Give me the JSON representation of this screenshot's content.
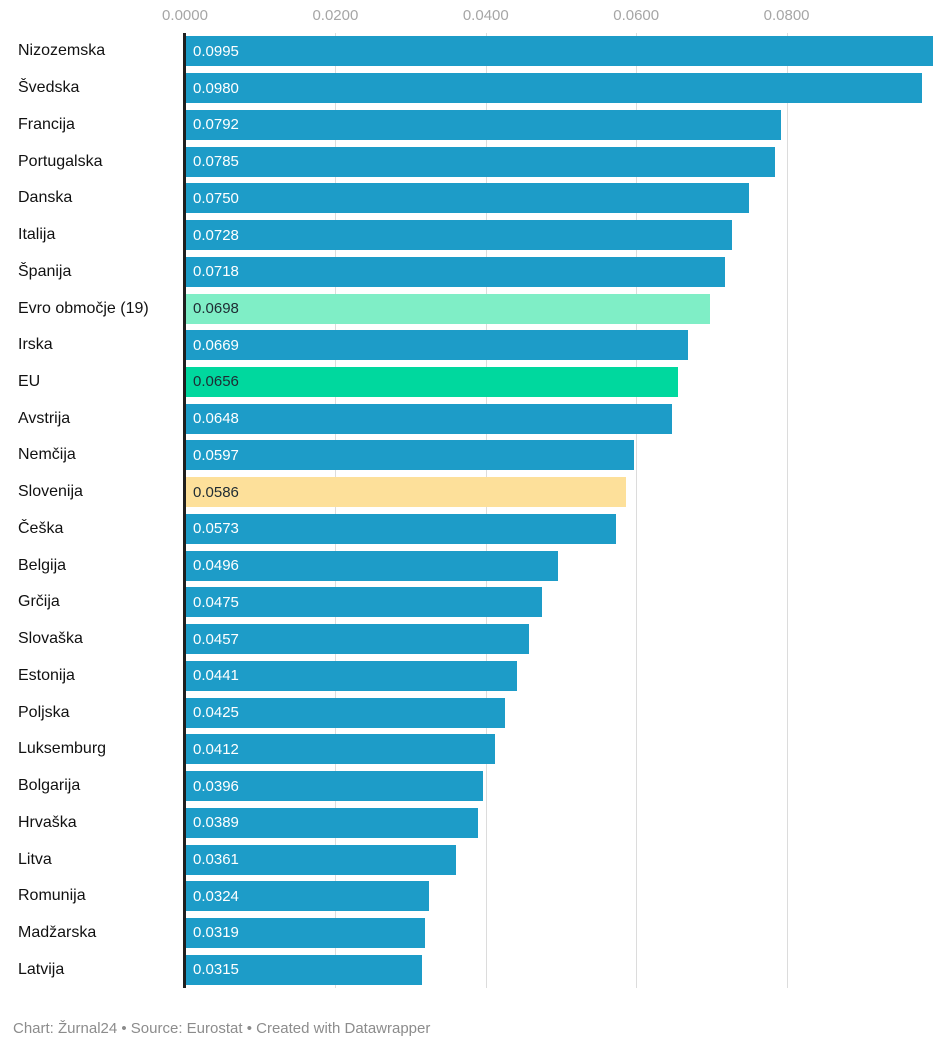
{
  "chart_data": {
    "type": "bar",
    "orientation": "horizontal",
    "title": "",
    "xlabel": "",
    "ylabel": "",
    "xlim": [
      0,
      0.1004
    ],
    "grid": true,
    "legend": false,
    "x_ticks": [
      {
        "value": 0.0,
        "label": "0.0000"
      },
      {
        "value": 0.02,
        "label": "0.0200"
      },
      {
        "value": 0.04,
        "label": "0.0400"
      },
      {
        "value": 0.06,
        "label": "0.0600"
      },
      {
        "value": 0.08,
        "label": "0.0800"
      }
    ],
    "rows": [
      {
        "label": "Nizozemska",
        "value": 0.0995,
        "display": "0.0995",
        "color": "blue"
      },
      {
        "label": "Švedska",
        "value": 0.098,
        "display": "0.0980",
        "color": "blue"
      },
      {
        "label": "Francija",
        "value": 0.0792,
        "display": "0.0792",
        "color": "blue"
      },
      {
        "label": "Portugalska",
        "value": 0.0785,
        "display": "0.0785",
        "color": "blue"
      },
      {
        "label": "Danska",
        "value": 0.075,
        "display": "0.0750",
        "color": "blue"
      },
      {
        "label": "Italija",
        "value": 0.0728,
        "display": "0.0728",
        "color": "blue"
      },
      {
        "label": "Španija",
        "value": 0.0718,
        "display": "0.0718",
        "color": "blue"
      },
      {
        "label": "Evro območje (19)",
        "value": 0.0698,
        "display": "0.0698",
        "color": "mint"
      },
      {
        "label": "Irska",
        "value": 0.0669,
        "display": "0.0669",
        "color": "blue"
      },
      {
        "label": "EU",
        "value": 0.0656,
        "display": "0.0656",
        "color": "green"
      },
      {
        "label": "Avstrija",
        "value": 0.0648,
        "display": "0.0648",
        "color": "blue"
      },
      {
        "label": "Nemčija",
        "value": 0.0597,
        "display": "0.0597",
        "color": "blue"
      },
      {
        "label": "Slovenija",
        "value": 0.0586,
        "display": "0.0586",
        "color": "yellow"
      },
      {
        "label": "Češka",
        "value": 0.0573,
        "display": "0.0573",
        "color": "blue"
      },
      {
        "label": "Belgija",
        "value": 0.0496,
        "display": "0.0496",
        "color": "blue"
      },
      {
        "label": "Grčija",
        "value": 0.0475,
        "display": "0.0475",
        "color": "blue"
      },
      {
        "label": "Slovaška",
        "value": 0.0457,
        "display": "0.0457",
        "color": "blue"
      },
      {
        "label": "Estonija",
        "value": 0.0441,
        "display": "0.0441",
        "color": "blue"
      },
      {
        "label": "Poljska",
        "value": 0.0425,
        "display": "0.0425",
        "color": "blue"
      },
      {
        "label": "Luksemburg",
        "value": 0.0412,
        "display": "0.0412",
        "color": "blue"
      },
      {
        "label": "Bolgarija",
        "value": 0.0396,
        "display": "0.0396",
        "color": "blue"
      },
      {
        "label": "Hrvaška",
        "value": 0.0389,
        "display": "0.0389",
        "color": "blue"
      },
      {
        "label": "Litva",
        "value": 0.0361,
        "display": "0.0361",
        "color": "blue"
      },
      {
        "label": "Romunija",
        "value": 0.0324,
        "display": "0.0324",
        "color": "blue"
      },
      {
        "label": "Madžarska",
        "value": 0.0319,
        "display": "0.0319",
        "color": "blue"
      },
      {
        "label": "Latvija",
        "value": 0.0315,
        "display": "0.0315",
        "color": "blue"
      }
    ]
  },
  "colors": {
    "blue": "#1d9cc8",
    "mint": "#7feec6",
    "green": "#00d89e",
    "yellow": "#fde09a",
    "bar_text_light": "#ffffff",
    "bar_text_dark": "#1e2b33",
    "axis_line": "#1f1f1f",
    "gridline": "#dcdcdc",
    "tick_text": "#a6a6a6",
    "label_text": "#111111",
    "footer_text": "#8c8c8c"
  },
  "footer": {
    "text": "Chart: Žurnal24 • Source: Eurostat • Created with Datawrapper"
  }
}
